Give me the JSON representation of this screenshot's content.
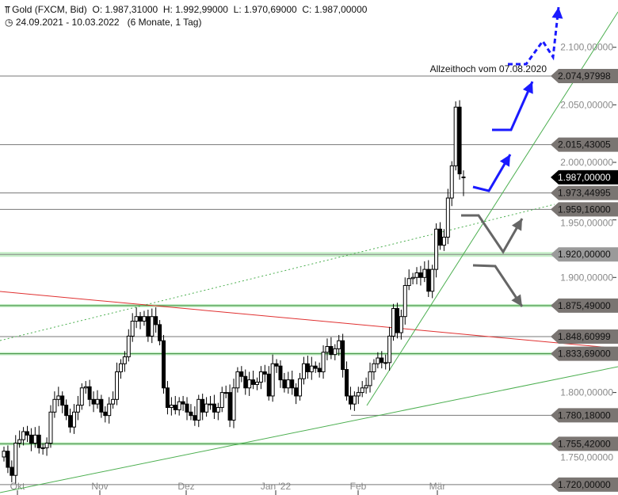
{
  "header": {
    "instrument": "Gold (FXCM, Bid)",
    "open": "O: 1.987,31000",
    "high": "H: 1.992,99000",
    "low": "L: 1.970,69000",
    "close": "C: 1.987,00000",
    "range": "24.09.2021 - 10.03.2022",
    "period": "(6 Monate, 1 Tag)",
    "icons": [
      "candlestick-icon",
      "clock-icon"
    ]
  },
  "annotation": "Allzeithoch vom 07.08.2020",
  "chart_data": {
    "type": "candlestick",
    "x_tick_labels": [
      "Okt",
      "Nov",
      "Dez",
      "Jan '22",
      "Feb",
      "Mär"
    ],
    "y_tick_labels": [
      {
        "value": 2100,
        "label": "2.100,00000"
      },
      {
        "value": 2050,
        "label": "2.050,00000"
      },
      {
        "value": 2000,
        "label": "2.000,00000"
      },
      {
        "value": 1950,
        "label": "1.950,00000"
      },
      {
        "value": 1900,
        "label": "1.900,00000"
      },
      {
        "value": 1800,
        "label": "1.800,00000"
      },
      {
        "value": 1750,
        "label": "1.750,00000"
      }
    ],
    "ylim": [
      1715,
      2130
    ],
    "close": [
      1749,
      1735,
      1728,
      1756,
      1759,
      1766,
      1763,
      1756,
      1763,
      1752,
      1752,
      1756,
      1783,
      1794,
      1797,
      1789,
      1780,
      1770,
      1783,
      1789,
      1804,
      1805,
      1794,
      1790,
      1794,
      1783,
      1780,
      1790,
      1794,
      1818,
      1825,
      1831,
      1849,
      1862,
      1866,
      1862,
      1866,
      1849,
      1866,
      1859,
      1845,
      1804,
      1787,
      1789,
      1785,
      1792,
      1790,
      1783,
      1780,
      1776,
      1794,
      1783,
      1790,
      1790,
      1783,
      1787,
      1800,
      1800,
      1776,
      1804,
      1818,
      1814,
      1804,
      1811,
      1807,
      1809,
      1818,
      1816,
      1797,
      1825,
      1823,
      1811,
      1804,
      1811,
      1804,
      1797,
      1812,
      1825,
      1818,
      1823,
      1821,
      1818,
      1835,
      1840,
      1833,
      1838,
      1845,
      1820,
      1797,
      1790,
      1797,
      1800,
      1804,
      1806,
      1818,
      1825,
      1830,
      1826,
      1826,
      1849,
      1873,
      1852,
      1866,
      1893,
      1899,
      1900,
      1904,
      1900,
      1907,
      1888,
      1907,
      1942,
      1928,
      1935,
      1969,
      1997,
      2048,
      1990,
      1987
    ],
    "last_candle": {
      "open": 1987.31,
      "high": 1992.99,
      "low": 1970.69,
      "close": 1987.0
    },
    "levels": [
      {
        "value": 2074.97998,
        "label": "2.074,97998",
        "style": "gray"
      },
      {
        "value": 2015.43005,
        "label": "2.015,43005",
        "style": "gray"
      },
      {
        "value": 1987.0,
        "label": "1.987,00000",
        "style": "current"
      },
      {
        "value": 1973.44995,
        "label": "1.973,44995",
        "style": "gray"
      },
      {
        "value": 1959.16,
        "label": "1.959,16000",
        "style": "gray"
      },
      {
        "value": 1920.0,
        "label": "1.920,00000",
        "style": "green-band"
      },
      {
        "value": 1875.49,
        "label": "1.875,49000",
        "style": "green"
      },
      {
        "value": 1848.60999,
        "label": "1.848,60999",
        "style": "gray"
      },
      {
        "value": 1833.69,
        "label": "1.833,69000",
        "style": "green"
      },
      {
        "value": 1780.18,
        "label": "1.780,18000",
        "style": "gray-short"
      },
      {
        "value": 1755.42,
        "label": "1.755,42000",
        "style": "green"
      },
      {
        "value": 1720.0,
        "label": "1.720,00000",
        "style": "gray"
      }
    ],
    "colors": {
      "up": "#ffffff",
      "down": "#000000",
      "resistance": "#e03030",
      "trend": "#4caf50",
      "band": "#c6efc8",
      "scenario_bull": "#1a1aff",
      "scenario_bear": "#666666",
      "tag": "#7a7572",
      "current_tag": "#000000"
    },
    "grid": false
  }
}
